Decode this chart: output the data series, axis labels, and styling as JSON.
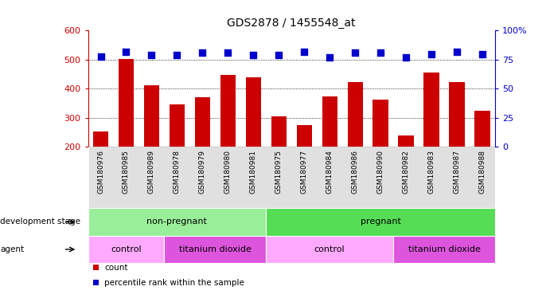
{
  "title": "GDS2878 / 1455548_at",
  "samples": [
    "GSM180976",
    "GSM180985",
    "GSM180989",
    "GSM180978",
    "GSM180979",
    "GSM180980",
    "GSM180981",
    "GSM180975",
    "GSM180977",
    "GSM180984",
    "GSM180986",
    "GSM180990",
    "GSM180982",
    "GSM180983",
    "GSM180987",
    "GSM180988"
  ],
  "counts": [
    252,
    502,
    412,
    347,
    370,
    448,
    440,
    305,
    276,
    374,
    422,
    363,
    238,
    455,
    422,
    323
  ],
  "percentile_ranks": [
    78,
    82,
    79,
    79,
    81,
    81,
    79,
    79,
    82,
    77,
    81,
    81,
    77,
    80,
    82,
    80
  ],
  "bar_color": "#cc0000",
  "dot_color": "#0000cc",
  "bar_bottom": 200,
  "ylim_left": [
    200,
    600
  ],
  "ylim_right": [
    0,
    100
  ],
  "yticks_left": [
    200,
    300,
    400,
    500,
    600
  ],
  "yticks_right": [
    0,
    25,
    50,
    75,
    100
  ],
  "yticklabels_right": [
    "0",
    "25",
    "50",
    "75",
    "100%"
  ],
  "grid_lines": [
    300,
    400,
    500
  ],
  "development_stage_groups": [
    {
      "label": "non-pregnant",
      "start": 0,
      "end": 7,
      "color": "#99ee99"
    },
    {
      "label": "pregnant",
      "start": 7,
      "end": 16,
      "color": "#55dd55"
    }
  ],
  "agent_groups": [
    {
      "label": "control",
      "start": 0,
      "end": 3,
      "color": "#ffaaff"
    },
    {
      "label": "titanium dioxide",
      "start": 3,
      "end": 7,
      "color": "#dd55dd"
    },
    {
      "label": "control",
      "start": 7,
      "end": 12,
      "color": "#ffaaff"
    },
    {
      "label": "titanium dioxide",
      "start": 12,
      "end": 16,
      "color": "#dd55dd"
    }
  ],
  "legend_items": [
    {
      "label": "count",
      "color": "#cc0000"
    },
    {
      "label": "percentile rank within the sample",
      "color": "#0000cc"
    }
  ],
  "bg_color": "#ffffff",
  "tick_label_color_left": "#cc0000",
  "tick_label_color_right": "#0000cc",
  "bar_width": 0.6,
  "dot_size": 40,
  "figsize": [
    6.91,
    3.84
  ],
  "dpi": 100
}
